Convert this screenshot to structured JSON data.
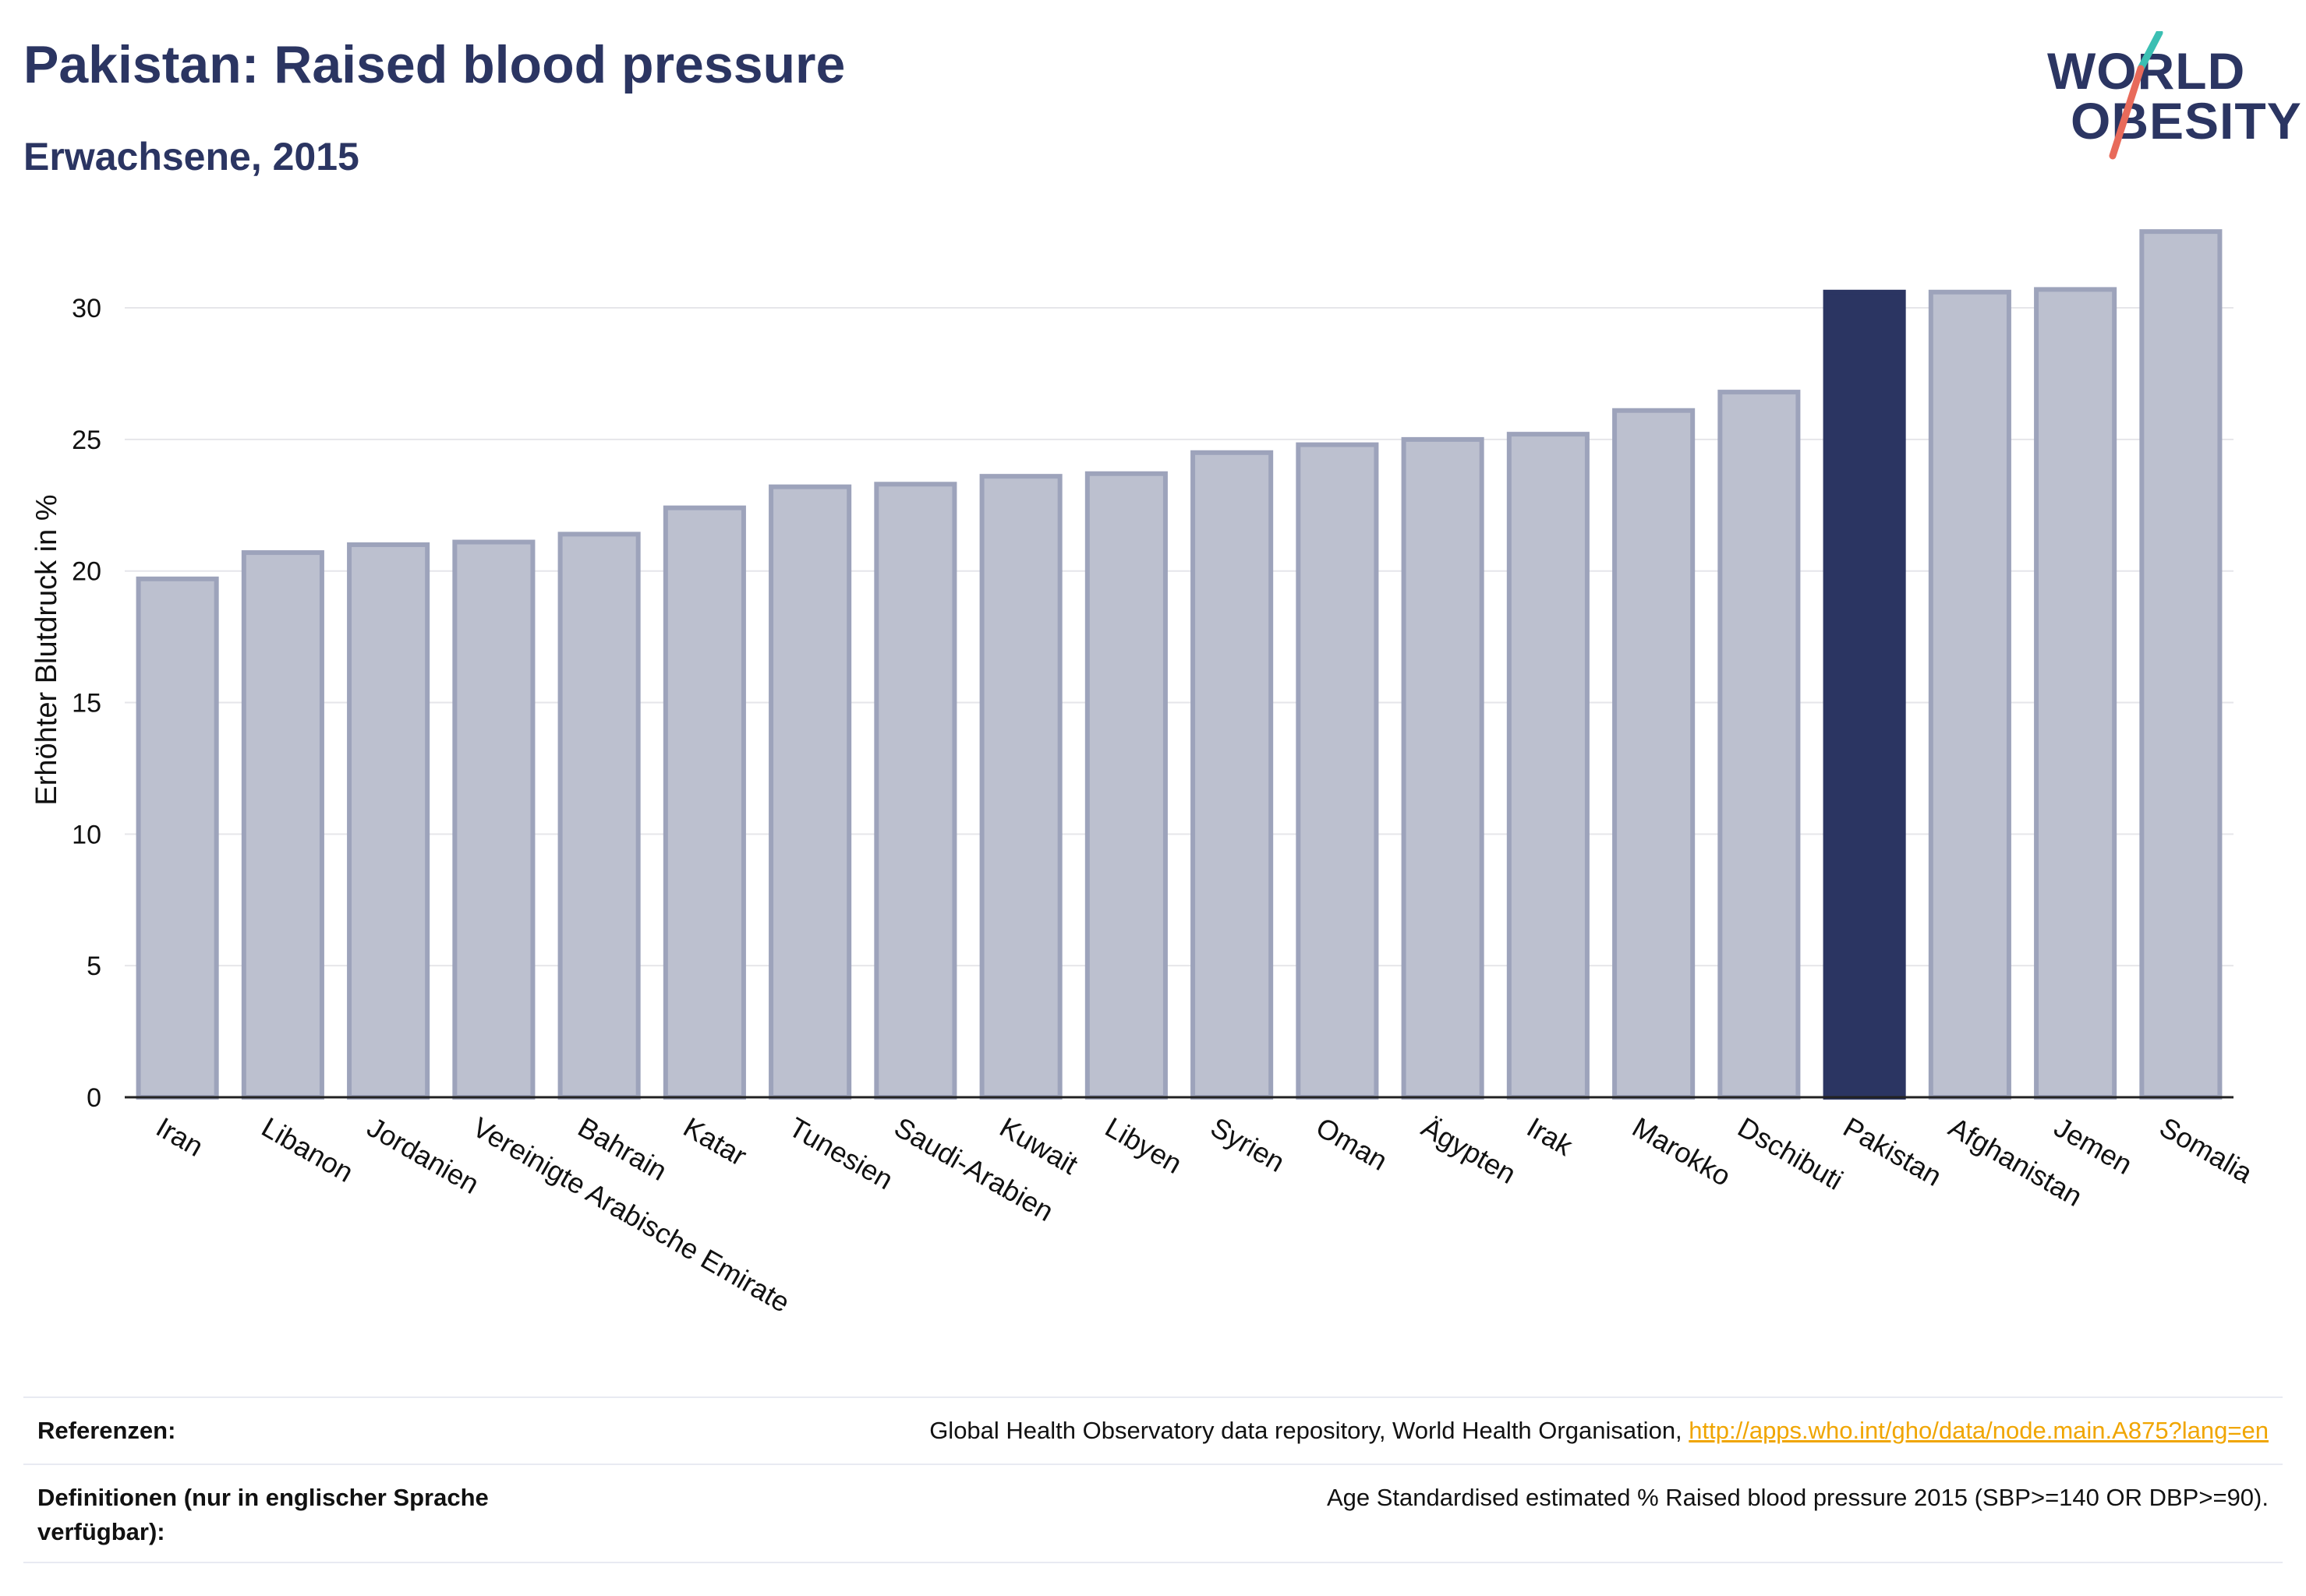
{
  "header": {
    "title": "Pakistan: Raised blood pressure",
    "subtitle": "Erwachsene, 2015"
  },
  "logo": {
    "line1": "WORLD",
    "line2": "OBESITY"
  },
  "chart_data": {
    "type": "bar",
    "title": "Pakistan: Raised blood pressure",
    "subtitle": "Erwachsene, 2015",
    "ylabel": "Erhöhter Blutdruck in %",
    "xlabel": "",
    "ylim": [
      0,
      34
    ],
    "yticks": [
      0,
      5,
      10,
      15,
      20,
      25,
      30
    ],
    "grid": true,
    "highlight": "Pakistan",
    "colors": {
      "bar": "#bcc0cf",
      "bar_border": "#9da3bb",
      "highlight": "#2b3562"
    },
    "categories": [
      "Iran",
      "Libanon",
      "Jordanien",
      "Vereinigte Arabische Emirate",
      "Bahrain",
      "Katar",
      "Tunesien",
      "Saudi-Arabien",
      "Kuwait",
      "Libyen",
      "Syrien",
      "Oman",
      "Ägypten",
      "Irak",
      "Marokko",
      "Dschibuti",
      "Pakistan",
      "Afghanistan",
      "Jemen",
      "Somalia"
    ],
    "values": [
      19.7,
      20.7,
      21.0,
      21.1,
      21.4,
      22.4,
      23.2,
      23.3,
      23.6,
      23.7,
      24.5,
      24.8,
      25.0,
      25.2,
      26.1,
      26.8,
      30.6,
      30.6,
      30.7,
      32.9
    ]
  },
  "footer": {
    "references_label": "Referenzen:",
    "references_text": "Global Health Observatory data repository, World Health Organisation, ",
    "references_link": "http://apps.who.int/gho/data/node.main.A875?lang=en",
    "definitions_label": "Definitionen (nur in englischer Sprache verfügbar):",
    "definitions_text": "Age Standardised estimated % Raised blood pressure 2015 (SBP>=140 OR DBP>=90)."
  }
}
